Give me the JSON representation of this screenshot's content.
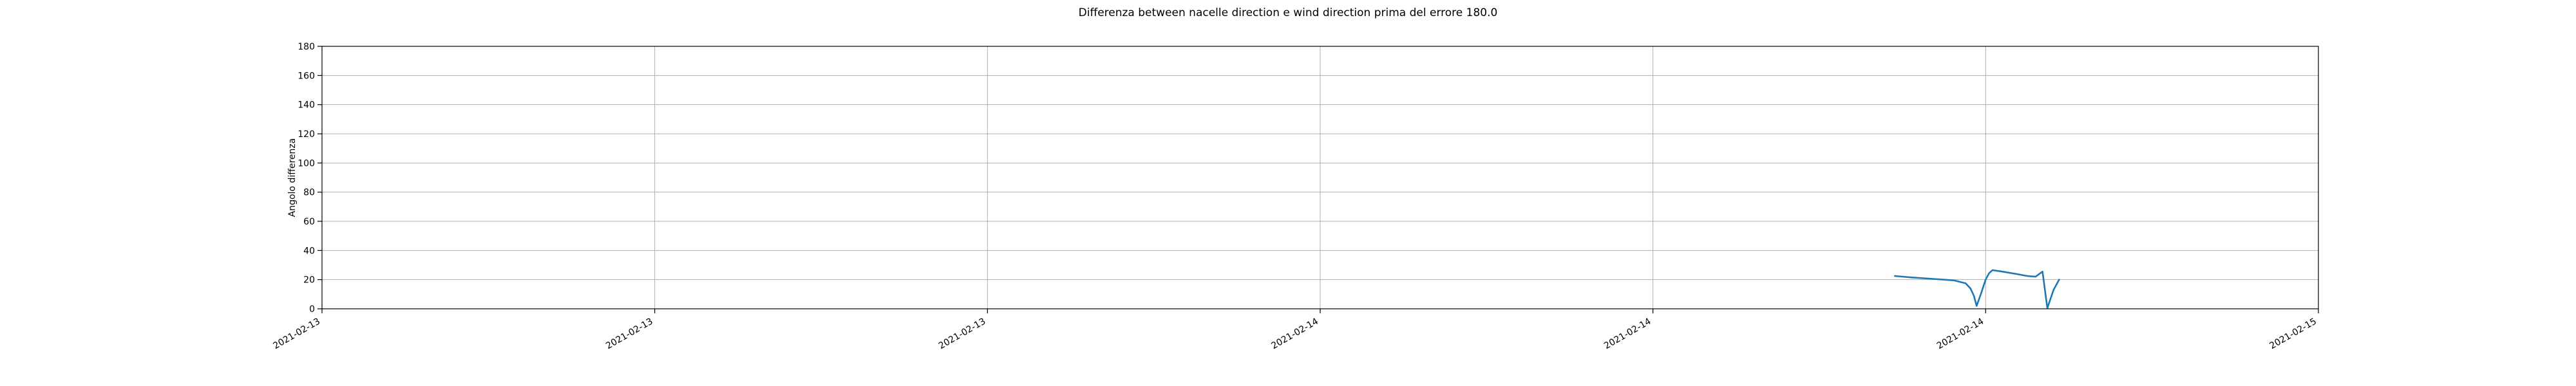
{
  "chart_data": {
    "type": "line",
    "title": "Differenza between nacelle direction e wind direction prima del errore 180.0",
    "xlabel": "",
    "ylabel": "Angolo differenza",
    "grid": true,
    "legend": "none",
    "xlim": [
      "2021-02-13T00:00",
      "2021-02-15T00:00"
    ],
    "ylim": [
      0,
      180
    ],
    "y_ticks": [
      0,
      20,
      40,
      60,
      80,
      100,
      120,
      140,
      160,
      180
    ],
    "x_ticks": [
      {
        "t": "2021-02-13T00:00",
        "label": "2021-02-13"
      },
      {
        "t": "2021-02-13T08:00",
        "label": "2021-02-13"
      },
      {
        "t": "2021-02-13T16:00",
        "label": "2021-02-13"
      },
      {
        "t": "2021-02-14T00:00",
        "label": "2021-02-14"
      },
      {
        "t": "2021-02-14T08:00",
        "label": "2021-02-14"
      },
      {
        "t": "2021-02-14T16:00",
        "label": "2021-02-14"
      },
      {
        "t": "2021-02-15T00:00",
        "label": "2021-02-15"
      }
    ],
    "series": [
      {
        "color": "#1f77b4",
        "points": [
          {
            "x": "2021-02-14T13:49",
            "y": 22.5
          },
          {
            "x": "2021-02-14T14:14",
            "y": 21.5
          },
          {
            "x": "2021-02-14T14:44",
            "y": 20.5
          },
          {
            "x": "2021-02-14T15:14",
            "y": 19.5
          },
          {
            "x": "2021-02-14T15:31",
            "y": 17.5
          },
          {
            "x": "2021-02-14T15:38",
            "y": 14.0
          },
          {
            "x": "2021-02-14T15:43",
            "y": 9.0
          },
          {
            "x": "2021-02-14T15:47",
            "y": 2.0
          },
          {
            "x": "2021-02-14T15:53",
            "y": 10.0
          },
          {
            "x": "2021-02-14T16:00",
            "y": 20.0
          },
          {
            "x": "2021-02-14T16:05",
            "y": 24.5
          },
          {
            "x": "2021-02-14T16:10",
            "y": 26.5
          },
          {
            "x": "2021-02-14T16:24",
            "y": 25.5
          },
          {
            "x": "2021-02-14T16:43",
            "y": 24.0
          },
          {
            "x": "2021-02-14T17:00",
            "y": 22.5
          },
          {
            "x": "2021-02-14T17:12",
            "y": 22.0
          },
          {
            "x": "2021-02-14T17:22",
            "y": 25.5
          },
          {
            "x": "2021-02-14T17:29",
            "y": 0.5
          },
          {
            "x": "2021-02-14T17:38",
            "y": 13.0
          },
          {
            "x": "2021-02-14T17:46",
            "y": 20.0
          }
        ]
      }
    ]
  }
}
